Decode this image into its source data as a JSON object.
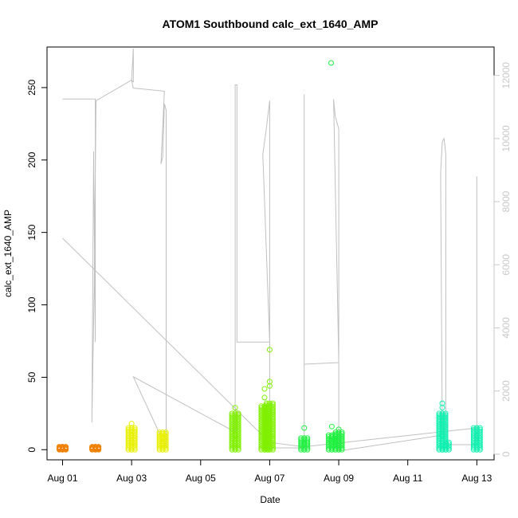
{
  "chart_data": {
    "type": "scatter",
    "title": "ATOM1 Southbound calc_ext_1640_AMP",
    "xlabel": "Date",
    "ylabel": "calc_ext_1640_AMP",
    "x_ticks": [
      "Aug 01",
      "Aug 03",
      "Aug 05",
      "Aug 07",
      "Aug 09",
      "Aug 11",
      "Aug 13"
    ],
    "x_tick_days": [
      1,
      3,
      5,
      7,
      9,
      11,
      13
    ],
    "xlim_days": [
      0.55,
      13.5
    ],
    "y_left_ticks": [
      0,
      50,
      100,
      150,
      200,
      250
    ],
    "ylim_left": [
      -7,
      278
    ],
    "y_right_ticks": [
      0,
      2000,
      4000,
      6000,
      8000,
      10000,
      12000
    ],
    "ylim_right": [
      -180,
      12900
    ],
    "colors": {
      "grey_line": "#c0c0c0",
      "orange": "#f08000",
      "yellow": "#e8f000",
      "lime": "#80f000",
      "green": "#20f040",
      "teal": "#10f0b0"
    },
    "series": [
      {
        "color": "orange",
        "clusters": [
          {
            "day": 1.0,
            "y_min": 0,
            "y_max": 2,
            "max_points": [
              0,
              2
            ]
          },
          {
            "day": 1.95,
            "y_min": 0,
            "y_max": 2,
            "max_points": [
              0,
              1,
              2
            ]
          }
        ]
      },
      {
        "color": "yellow",
        "clusters": [
          {
            "day": 3.0,
            "y_min": 0,
            "y_max": 15,
            "max_points": [
              0,
              5,
              10,
              15,
              18
            ]
          },
          {
            "day": 3.9,
            "y_min": 0,
            "y_max": 12,
            "max_points": [
              0,
              4,
              8,
              12
            ]
          }
        ]
      },
      {
        "color": "lime",
        "clusters": [
          {
            "day": 6.0,
            "y_min": 0,
            "y_max": 25,
            "max_points": [
              0,
              10,
              20,
              25,
              29
            ]
          },
          {
            "day": 6.85,
            "y_min": 0,
            "y_max": 30,
            "max_points": [
              0,
              10,
              20,
              30,
              36,
              42
            ]
          },
          {
            "day": 7.0,
            "y_min": 0,
            "y_max": 32,
            "max_points": [
              0,
              15,
              30,
              44,
              47,
              69
            ]
          }
        ]
      },
      {
        "color": "green",
        "clusters": [
          {
            "day": 8.0,
            "y_min": 0,
            "y_max": 8,
            "max_points": [
              0,
              4,
              8,
              15
            ]
          },
          {
            "day": 8.8,
            "y_min": 0,
            "y_max": 10,
            "max_points": [
              0,
              5,
              9,
              16
            ]
          },
          {
            "day": 9.0,
            "y_min": 0,
            "y_max": 12,
            "max_points": [
              0,
              6,
              12,
              14
            ]
          },
          {
            "day": 8.78,
            "y_min": 267,
            "y_max": 267,
            "max_points": [
              267
            ]
          }
        ]
      },
      {
        "color": "teal",
        "clusters": [
          {
            "day": 12.0,
            "y_min": 0,
            "y_max": 25,
            "max_points": [
              0,
              10,
              20,
              29,
              32
            ]
          },
          {
            "day": 12.1,
            "y_min": 0,
            "y_max": 5,
            "max_points": [
              0,
              3,
              5
            ]
          },
          {
            "day": 13.0,
            "y_min": 0,
            "y_max": 15,
            "max_points": [
              0,
              5,
              10,
              15
            ]
          }
        ]
      }
    ],
    "grey_trace_right_axis": [
      {
        "day": 1.0,
        "v": 11250
      },
      {
        "day": 1.95,
        "v": 11250
      },
      {
        "day": 1.95,
        "v": 3550
      },
      {
        "day": 1.9,
        "v": 9600
      },
      {
        "day": 1.85,
        "v": 1000
      },
      {
        "day": 1.92,
        "v": 5400
      },
      {
        "day": 1.97,
        "v": 11200
      },
      {
        "day": 3.0,
        "v": 11850
      },
      {
        "day": 3.05,
        "v": 12850
      },
      {
        "day": 3.05,
        "v": 11800
      },
      {
        "day": 3.0,
        "v": 11850
      },
      {
        "day": 3.05,
        "v": 11600
      },
      {
        "day": 3.95,
        "v": 11500
      },
      {
        "day": 3.85,
        "v": 9200
      },
      {
        "day": 3.9,
        "v": 9400
      },
      {
        "day": 3.95,
        "v": 11100
      },
      {
        "day": 4.0,
        "v": 10900
      },
      {
        "day": 4.0,
        "v": 200
      },
      {
        "day": 3.05,
        "v": 2450
      },
      {
        "day": 6.0,
        "v": 700
      },
      {
        "day": 6.0,
        "v": 11700
      },
      {
        "day": 6.05,
        "v": 11700
      },
      {
        "day": 6.05,
        "v": 3550
      },
      {
        "day": 7.0,
        "v": 3550
      },
      {
        "day": 6.8,
        "v": 9500
      },
      {
        "day": 6.9,
        "v": 10300
      },
      {
        "day": 7.0,
        "v": 11200
      },
      {
        "day": 7.0,
        "v": 7500
      },
      {
        "day": 7.0,
        "v": 200
      },
      {
        "day": 8.0,
        "v": 200
      },
      {
        "day": 8.0,
        "v": 11400
      },
      {
        "day": 8.0,
        "v": 2850
      },
      {
        "day": 9.0,
        "v": 2900
      },
      {
        "day": 8.85,
        "v": 11250
      },
      {
        "day": 8.9,
        "v": 10700
      },
      {
        "day": 9.0,
        "v": 10300
      },
      {
        "day": 9.0,
        "v": 100
      },
      {
        "day": 12.0,
        "v": 600
      },
      {
        "day": 11.95,
        "v": 8900
      },
      {
        "day": 12.0,
        "v": 9900
      },
      {
        "day": 12.05,
        "v": 10000
      },
      {
        "day": 12.1,
        "v": 9500
      },
      {
        "day": 12.1,
        "v": 300
      },
      {
        "day": 13.0,
        "v": 300
      },
      {
        "day": 13.0,
        "v": 8800
      },
      {
        "day": 13.0,
        "v": 700
      }
    ],
    "grey_diagonal_left_axis": [
      {
        "day": 1.0,
        "y": 146
      },
      {
        "day": 7.0,
        "y": 5
      },
      {
        "day": 8.0,
        "y": 2
      },
      {
        "day": 13.0,
        "y": 15
      }
    ]
  }
}
